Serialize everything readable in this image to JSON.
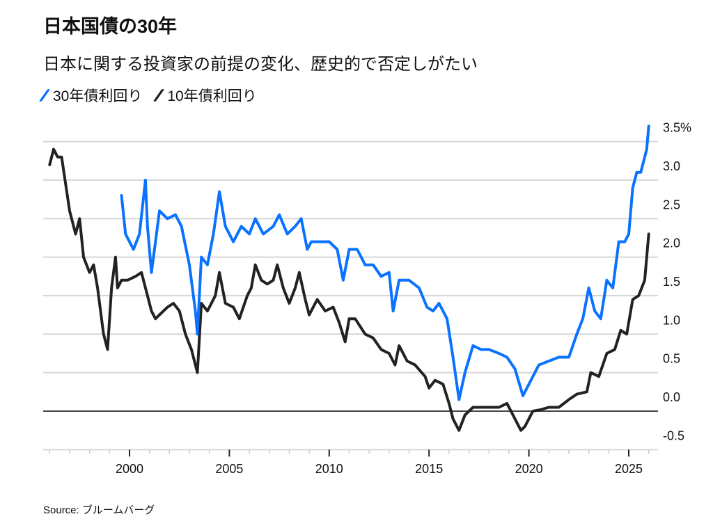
{
  "chart_data": {
    "type": "line",
    "title": "日本国債の30年",
    "subtitle": "日本に関する投資家の前提の変化、歴史的で否定しがたい",
    "source": "Source: ブルームバーグ",
    "xlim": [
      1995.6,
      2026.8
    ],
    "ylim": [
      -0.5,
      3.7
    ],
    "y_ticks": [
      -0.5,
      0.0,
      0.5,
      1.0,
      1.5,
      2.0,
      2.5,
      3.0,
      3.5
    ],
    "y_tick_labels": [
      "-0.5",
      "0.0",
      "0.5",
      "1.0",
      "1.5",
      "2.0",
      "2.5",
      "3.0",
      "3.5%"
    ],
    "x_ticks": [
      2000,
      2005,
      2010,
      2015,
      2020,
      2025
    ],
    "x_tick_labels": [
      "2000",
      "2005",
      "2010",
      "2015",
      "2020",
      "2025"
    ],
    "grid": true,
    "legend_position": "top-left",
    "series": [
      {
        "name": "30年債利回り",
        "color": "#0a72ff",
        "x": [
          1999.6,
          1999.8,
          2000.2,
          2000.5,
          2000.8,
          2000.9,
          2001.1,
          2001.3,
          2001.5,
          2001.9,
          2002.3,
          2002.6,
          2003.0,
          2003.3,
          2003.4,
          2003.6,
          2003.9,
          2004.2,
          2004.5,
          2004.8,
          2005.2,
          2005.6,
          2006.0,
          2006.3,
          2006.7,
          2007.2,
          2007.5,
          2007.9,
          2008.3,
          2008.6,
          2008.9,
          2009.1,
          2009.5,
          2010.0,
          2010.4,
          2010.7,
          2011.0,
          2011.4,
          2011.8,
          2012.2,
          2012.6,
          2013.0,
          2013.2,
          2013.5,
          2014.0,
          2014.5,
          2014.9,
          2015.2,
          2015.5,
          2015.9,
          2016.2,
          2016.5,
          2016.8,
          2017.2,
          2017.6,
          2018.0,
          2018.5,
          2018.9,
          2019.3,
          2019.7,
          2020.0,
          2020.5,
          2021.0,
          2021.5,
          2022.0,
          2022.4,
          2022.7,
          2023.0,
          2023.3,
          2023.6,
          2023.9,
          2024.2,
          2024.5,
          2024.8,
          2025.0,
          2025.2,
          2025.4,
          2025.6,
          2025.9,
          2026.0
        ],
        "y": [
          2.8,
          2.3,
          2.1,
          2.3,
          3.0,
          2.4,
          1.8,
          2.2,
          2.6,
          2.5,
          2.55,
          2.4,
          1.9,
          1.3,
          1.0,
          2.0,
          1.9,
          2.3,
          2.85,
          2.4,
          2.2,
          2.4,
          2.3,
          2.5,
          2.3,
          2.4,
          2.55,
          2.3,
          2.4,
          2.5,
          2.1,
          2.2,
          2.2,
          2.2,
          2.1,
          1.7,
          2.1,
          2.1,
          1.9,
          1.9,
          1.75,
          1.8,
          1.3,
          1.7,
          1.7,
          1.6,
          1.35,
          1.3,
          1.4,
          1.2,
          0.7,
          0.15,
          0.5,
          0.85,
          0.8,
          0.8,
          0.75,
          0.7,
          0.55,
          0.2,
          0.35,
          0.6,
          0.65,
          0.7,
          0.7,
          1.0,
          1.2,
          1.6,
          1.3,
          1.2,
          1.7,
          1.6,
          2.2,
          2.2,
          2.3,
          2.9,
          3.1,
          3.1,
          3.4,
          3.7
        ]
      },
      {
        "name": "10年債利回り",
        "color": "#222222",
        "x": [
          1996.0,
          1996.2,
          1996.4,
          1996.6,
          1997.0,
          1997.3,
          1997.5,
          1997.7,
          1998.0,
          1998.2,
          1998.4,
          1998.7,
          1998.9,
          1999.1,
          1999.3,
          1999.4,
          1999.6,
          1999.9,
          2000.3,
          2000.6,
          2000.9,
          2001.1,
          2001.3,
          2001.5,
          2001.9,
          2002.2,
          2002.5,
          2002.8,
          2003.1,
          2003.4,
          2003.6,
          2003.9,
          2004.3,
          2004.5,
          2004.8,
          2005.2,
          2005.5,
          2005.9,
          2006.1,
          2006.3,
          2006.6,
          2006.9,
          2007.2,
          2007.4,
          2007.7,
          2008.0,
          2008.3,
          2008.5,
          2008.8,
          2009.0,
          2009.4,
          2009.8,
          2010.2,
          2010.5,
          2010.8,
          2011.0,
          2011.3,
          2011.8,
          2012.2,
          2012.6,
          2013.0,
          2013.3,
          2013.5,
          2013.9,
          2014.3,
          2014.8,
          2015.0,
          2015.3,
          2015.7,
          2016.0,
          2016.2,
          2016.5,
          2016.8,
          2017.2,
          2017.6,
          2018.0,
          2018.5,
          2018.9,
          2019.2,
          2019.6,
          2019.8,
          2020.2,
          2020.6,
          2021.0,
          2021.5,
          2022.0,
          2022.4,
          2022.9,
          2023.1,
          2023.5,
          2023.9,
          2024.3,
          2024.6,
          2024.9,
          2025.2,
          2025.5,
          2025.8,
          2026.0
        ],
        "y": [
          3.2,
          3.4,
          3.3,
          3.3,
          2.6,
          2.3,
          2.5,
          2.0,
          1.8,
          1.9,
          1.6,
          1.0,
          0.8,
          1.6,
          2.0,
          1.6,
          1.7,
          1.7,
          1.75,
          1.8,
          1.5,
          1.3,
          1.2,
          1.25,
          1.35,
          1.4,
          1.3,
          1.0,
          0.8,
          0.5,
          1.4,
          1.3,
          1.5,
          1.8,
          1.4,
          1.35,
          1.2,
          1.5,
          1.6,
          1.9,
          1.7,
          1.65,
          1.7,
          1.9,
          1.6,
          1.4,
          1.6,
          1.8,
          1.45,
          1.25,
          1.45,
          1.3,
          1.35,
          1.15,
          0.9,
          1.2,
          1.2,
          1.0,
          0.95,
          0.8,
          0.75,
          0.6,
          0.85,
          0.65,
          0.6,
          0.45,
          0.3,
          0.4,
          0.35,
          0.1,
          -0.1,
          -0.25,
          -0.05,
          0.05,
          0.05,
          0.05,
          0.05,
          0.1,
          -0.05,
          -0.25,
          -0.2,
          0.0,
          0.02,
          0.05,
          0.05,
          0.15,
          0.22,
          0.25,
          0.5,
          0.45,
          0.75,
          0.8,
          1.05,
          1.0,
          1.45,
          1.5,
          1.7,
          2.3
        ]
      }
    ]
  },
  "colors": {
    "blue": "#0a72ff",
    "black": "#222222",
    "grid": "#d6d6d6",
    "zero": "#444444"
  }
}
